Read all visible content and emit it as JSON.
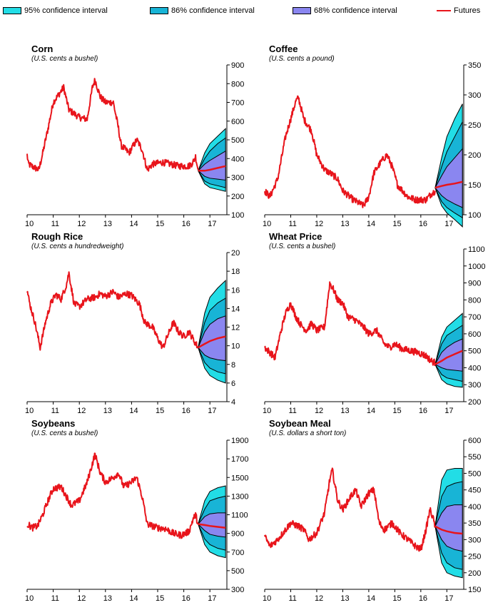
{
  "legend": {
    "items": [
      {
        "label": "95% confidence interval",
        "color": "#22dde6"
      },
      {
        "label": "86% confidence interval",
        "color": "#18b4d6"
      },
      {
        "label": "68% confidence interval",
        "color": "#8a86f0"
      },
      {
        "label": "Futures",
        "color": "#e8141b"
      }
    ]
  },
  "colors": {
    "history": "#e8141b",
    "ci95": "#22dde6",
    "ci86": "#18b4d6",
    "ci68": "#8a86f0",
    "band_line": "#000000"
  },
  "chart_data": [
    {
      "type": "line",
      "title": "Corn",
      "subtitle": "(U.S. cents a bushel)",
      "x_ticks": [
        "10",
        "11",
        "12",
        "13",
        "14",
        "15",
        "16",
        "17"
      ],
      "ylim": [
        100,
        900
      ],
      "y_ticks": [
        "100",
        "200",
        "300",
        "400",
        "500",
        "600",
        "700",
        "800",
        "900"
      ],
      "history_keypoints": [
        [
          10.0,
          420
        ],
        [
          10.05,
          370
        ],
        [
          10.3,
          350
        ],
        [
          10.45,
          340
        ],
        [
          10.6,
          430
        ],
        [
          10.8,
          560
        ],
        [
          11.0,
          700
        ],
        [
          11.2,
          740
        ],
        [
          11.4,
          780
        ],
        [
          11.6,
          660
        ],
        [
          11.8,
          640
        ],
        [
          12.0,
          620
        ],
        [
          12.3,
          610
        ],
        [
          12.5,
          780
        ],
        [
          12.6,
          820
        ],
        [
          12.8,
          730
        ],
        [
          13.0,
          700
        ],
        [
          13.3,
          700
        ],
        [
          13.5,
          560
        ],
        [
          13.6,
          470
        ],
        [
          13.9,
          430
        ],
        [
          14.2,
          500
        ],
        [
          14.4,
          450
        ],
        [
          14.6,
          340
        ],
        [
          14.8,
          370
        ],
        [
          15.2,
          380
        ],
        [
          15.5,
          370
        ],
        [
          15.8,
          360
        ],
        [
          16.2,
          360
        ],
        [
          16.35,
          380
        ],
        [
          16.45,
          410
        ],
        [
          16.55,
          340
        ]
      ],
      "forecast": {
        "x": [
          16.55,
          16.8,
          17.0,
          17.3,
          17.6
        ],
        "futures": [
          335,
          335,
          340,
          350,
          360
        ],
        "ci68_low": [
          335,
          305,
          295,
          290,
          285
        ],
        "ci68_high": [
          335,
          370,
          390,
          415,
          440
        ],
        "ci86_low": [
          335,
          280,
          265,
          255,
          245
        ],
        "ci86_high": [
          335,
          400,
          440,
          480,
          510
        ],
        "ci95_low": [
          335,
          265,
          245,
          235,
          225
        ],
        "ci95_high": [
          335,
          430,
          480,
          520,
          560
        ]
      }
    },
    {
      "type": "line",
      "title": "Coffee",
      "subtitle": "(U.S. cents a pound)",
      "x_ticks": [
        "10",
        "11",
        "12",
        "13",
        "14",
        "15",
        "16",
        "17"
      ],
      "ylim": [
        100,
        350
      ],
      "y_ticks": [
        "100",
        "150",
        "200",
        "250",
        "300",
        "350"
      ],
      "history_keypoints": [
        [
          10.0,
          140
        ],
        [
          10.2,
          130
        ],
        [
          10.5,
          160
        ],
        [
          10.8,
          230
        ],
        [
          11.0,
          260
        ],
        [
          11.2,
          290
        ],
        [
          11.3,
          295
        ],
        [
          11.5,
          260
        ],
        [
          11.8,
          240
        ],
        [
          12.0,
          200
        ],
        [
          12.3,
          175
        ],
        [
          12.5,
          170
        ],
        [
          12.8,
          160
        ],
        [
          13.0,
          140
        ],
        [
          13.4,
          125
        ],
        [
          13.8,
          115
        ],
        [
          14.0,
          130
        ],
        [
          14.2,
          170
        ],
        [
          14.5,
          190
        ],
        [
          14.7,
          200
        ],
        [
          14.9,
          180
        ],
        [
          15.1,
          150
        ],
        [
          15.5,
          130
        ],
        [
          15.8,
          125
        ],
        [
          16.2,
          125
        ],
        [
          16.4,
          135
        ],
        [
          16.55,
          140
        ]
      ],
      "forecast": {
        "x": [
          16.55,
          16.8,
          17.0,
          17.3,
          17.6
        ],
        "futures": [
          145,
          148,
          150,
          152,
          155
        ],
        "ci68_low": [
          145,
          132,
          125,
          118,
          112
        ],
        "ci68_high": [
          145,
          165,
          180,
          195,
          210
        ],
        "ci86_low": [
          145,
          122,
          112,
          103,
          95
        ],
        "ci86_high": [
          145,
          180,
          205,
          230,
          255
        ],
        "ci95_low": [
          145,
          115,
          103,
          92,
          80
        ],
        "ci95_high": [
          145,
          195,
          230,
          260,
          285
        ]
      }
    },
    {
      "type": "line",
      "title": "Rough Rice",
      "subtitle": "(U.S. cents a hundredweight)",
      "x_ticks": [
        "10",
        "11",
        "12",
        "13",
        "14",
        "15",
        "16",
        "17"
      ],
      "ylim": [
        4,
        20
      ],
      "y_ticks": [
        "4",
        "6",
        "8",
        "10",
        "12",
        "14",
        "16",
        "18",
        "20"
      ],
      "history_keypoints": [
        [
          10.0,
          16
        ],
        [
          10.1,
          14.5
        ],
        [
          10.3,
          12.5
        ],
        [
          10.5,
          9.8
        ],
        [
          10.7,
          12.5
        ],
        [
          10.9,
          14.5
        ],
        [
          11.1,
          15.5
        ],
        [
          11.3,
          15
        ],
        [
          11.5,
          16.5
        ],
        [
          11.6,
          17.8
        ],
        [
          11.8,
          14.5
        ],
        [
          12.0,
          14.2
        ],
        [
          12.3,
          15
        ],
        [
          12.6,
          15.2
        ],
        [
          12.8,
          15.6
        ],
        [
          13.0,
          15.3
        ],
        [
          13.3,
          15.8
        ],
        [
          13.5,
          15.2
        ],
        [
          13.8,
          15.6
        ],
        [
          14.0,
          15.4
        ],
        [
          14.3,
          14.5
        ],
        [
          14.5,
          12.5
        ],
        [
          14.8,
          12.0
        ],
        [
          15.0,
          10.8
        ],
        [
          15.2,
          9.8
        ],
        [
          15.4,
          11.2
        ],
        [
          15.6,
          12.5
        ],
        [
          15.8,
          11.5
        ],
        [
          16.0,
          11.0
        ],
        [
          16.2,
          11.5
        ],
        [
          16.4,
          10.5
        ],
        [
          16.55,
          9.8
        ]
      ],
      "forecast": {
        "x": [
          16.55,
          16.8,
          17.0,
          17.3,
          17.6
        ],
        "futures": [
          9.8,
          10.2,
          10.5,
          10.8,
          11.0
        ],
        "ci68_low": [
          9.8,
          9.0,
          8.7,
          8.5,
          8.4
        ],
        "ci68_high": [
          9.8,
          11.5,
          12.3,
          12.9,
          13.2
        ],
        "ci86_low": [
          9.8,
          8.2,
          7.6,
          7.2,
          7.0
        ],
        "ci86_high": [
          9.8,
          12.5,
          13.8,
          14.6,
          15.1
        ],
        "ci95_low": [
          9.8,
          7.6,
          6.8,
          6.3,
          6.0
        ],
        "ci95_high": [
          9.8,
          13.5,
          15.2,
          16.2,
          17.0
        ]
      }
    },
    {
      "type": "line",
      "title": "Wheat Price",
      "subtitle": "(U.S. cents a bushel)",
      "x_ticks": [
        "10",
        "11",
        "12",
        "13",
        "14",
        "15",
        "16",
        "17"
      ],
      "ylim": [
        200,
        1100
      ],
      "y_ticks": [
        "200",
        "300",
        "400",
        "500",
        "600",
        "700",
        "800",
        "900",
        "1000",
        "1100"
      ],
      "history_keypoints": [
        [
          10.0,
          520
        ],
        [
          10.2,
          490
        ],
        [
          10.4,
          460
        ],
        [
          10.6,
          600
        ],
        [
          10.8,
          720
        ],
        [
          11.0,
          780
        ],
        [
          11.2,
          700
        ],
        [
          11.4,
          650
        ],
        [
          11.6,
          620
        ],
        [
          11.8,
          660
        ],
        [
          12.0,
          620
        ],
        [
          12.3,
          640
        ],
        [
          12.5,
          900
        ],
        [
          12.65,
          860
        ],
        [
          12.8,
          800
        ],
        [
          13.0,
          780
        ],
        [
          13.2,
          700
        ],
        [
          13.5,
          680
        ],
        [
          13.8,
          640
        ],
        [
          14.0,
          600
        ],
        [
          14.3,
          620
        ],
        [
          14.6,
          540
        ],
        [
          14.8,
          520
        ],
        [
          15.0,
          540
        ],
        [
          15.3,
          510
        ],
        [
          15.6,
          500
        ],
        [
          15.9,
          490
        ],
        [
          16.2,
          470
        ],
        [
          16.4,
          440
        ],
        [
          16.55,
          430
        ]
      ],
      "forecast": {
        "x": [
          16.55,
          16.8,
          17.0,
          17.3,
          17.6
        ],
        "futures": [
          420,
          440,
          460,
          480,
          500
        ],
        "ci68_low": [
          420,
          400,
          390,
          385,
          380
        ],
        "ci68_high": [
          420,
          490,
          520,
          550,
          570
        ],
        "ci86_low": [
          420,
          360,
          340,
          330,
          320
        ],
        "ci86_high": [
          420,
          540,
          590,
          620,
          650
        ],
        "ci95_low": [
          420,
          330,
          305,
          290,
          285
        ],
        "ci95_high": [
          420,
          580,
          640,
          680,
          720
        ]
      }
    },
    {
      "type": "line",
      "title": "Soybeans",
      "subtitle": "(U.S. cents a bushel)",
      "x_ticks": [
        "10",
        "11",
        "12",
        "13",
        "14",
        "15",
        "16",
        "17"
      ],
      "ylim": [
        300,
        1900
      ],
      "y_ticks": [
        "300",
        "500",
        "700",
        "900",
        "1100",
        "1300",
        "1500",
        "1700",
        "1900"
      ],
      "history_keypoints": [
        [
          10.0,
          1000
        ],
        [
          10.2,
          960
        ],
        [
          10.4,
          980
        ],
        [
          10.6,
          1100
        ],
        [
          10.8,
          1250
        ],
        [
          11.0,
          1380
        ],
        [
          11.3,
          1400
        ],
        [
          11.5,
          1300
        ],
        [
          11.7,
          1200
        ],
        [
          12.0,
          1250
        ],
        [
          12.3,
          1450
        ],
        [
          12.5,
          1650
        ],
        [
          12.6,
          1750
        ],
        [
          12.8,
          1550
        ],
        [
          13.0,
          1450
        ],
        [
          13.3,
          1500
        ],
        [
          13.5,
          1550
        ],
        [
          13.7,
          1400
        ],
        [
          14.0,
          1450
        ],
        [
          14.2,
          1500
        ],
        [
          14.4,
          1300
        ],
        [
          14.6,
          1000
        ],
        [
          14.8,
          980
        ],
        [
          15.0,
          960
        ],
        [
          15.3,
          950
        ],
        [
          15.6,
          900
        ],
        [
          15.9,
          880
        ],
        [
          16.2,
          920
        ],
        [
          16.35,
          1050
        ],
        [
          16.45,
          1100
        ],
        [
          16.55,
          1000
        ]
      ],
      "forecast": {
        "x": [
          16.55,
          16.8,
          17.0,
          17.3,
          17.6
        ],
        "futures": [
          1000,
          990,
          980,
          970,
          960
        ],
        "ci68_low": [
          1000,
          930,
          890,
          870,
          860
        ],
        "ci68_high": [
          1000,
          1080,
          1110,
          1120,
          1120
        ],
        "ci86_low": [
          1000,
          840,
          780,
          740,
          720
        ],
        "ci86_high": [
          1000,
          1160,
          1250,
          1280,
          1300
        ],
        "ci95_low": [
          1000,
          780,
          700,
          660,
          640
        ],
        "ci95_high": [
          1000,
          1250,
          1350,
          1390,
          1410
        ]
      }
    },
    {
      "type": "line",
      "title": "Soybean Meal",
      "subtitle": "(U.S. dollars a short ton)",
      "x_ticks": [
        "10",
        "11",
        "12",
        "13",
        "14",
        "15",
        "16",
        "17"
      ],
      "ylim": [
        150,
        600
      ],
      "y_ticks": [
        "150",
        "200",
        "250",
        "300",
        "350",
        "400",
        "450",
        "500",
        "550",
        "600"
      ],
      "history_keypoints": [
        [
          10.0,
          310
        ],
        [
          10.2,
          280
        ],
        [
          10.5,
          300
        ],
        [
          10.8,
          330
        ],
        [
          11.0,
          350
        ],
        [
          11.3,
          340
        ],
        [
          11.5,
          330
        ],
        [
          11.7,
          300
        ],
        [
          12.0,
          320
        ],
        [
          12.3,
          380
        ],
        [
          12.5,
          480
        ],
        [
          12.6,
          510
        ],
        [
          12.8,
          420
        ],
        [
          13.0,
          390
        ],
        [
          13.3,
          430
        ],
        [
          13.5,
          450
        ],
        [
          13.7,
          400
        ],
        [
          14.0,
          440
        ],
        [
          14.2,
          450
        ],
        [
          14.4,
          350
        ],
        [
          14.6,
          330
        ],
        [
          14.9,
          350
        ],
        [
          15.2,
          320
        ],
        [
          15.5,
          300
        ],
        [
          15.8,
          280
        ],
        [
          16.0,
          270
        ],
        [
          16.2,
          330
        ],
        [
          16.35,
          390
        ],
        [
          16.45,
          370
        ],
        [
          16.55,
          340
        ]
      ],
      "forecast": {
        "x": [
          16.55,
          16.8,
          17.0,
          17.3,
          17.6
        ],
        "futures": [
          340,
          330,
          325,
          320,
          318
        ],
        "ci68_low": [
          340,
          300,
          280,
          270,
          265
        ],
        "ci68_high": [
          340,
          380,
          400,
          405,
          405
        ],
        "ci86_low": [
          340,
          260,
          230,
          215,
          210
        ],
        "ci86_high": [
          340,
          430,
          460,
          470,
          475
        ],
        "ci95_low": [
          340,
          230,
          200,
          190,
          185
        ],
        "ci95_high": [
          340,
          480,
          510,
          515,
          515
        ]
      }
    }
  ]
}
